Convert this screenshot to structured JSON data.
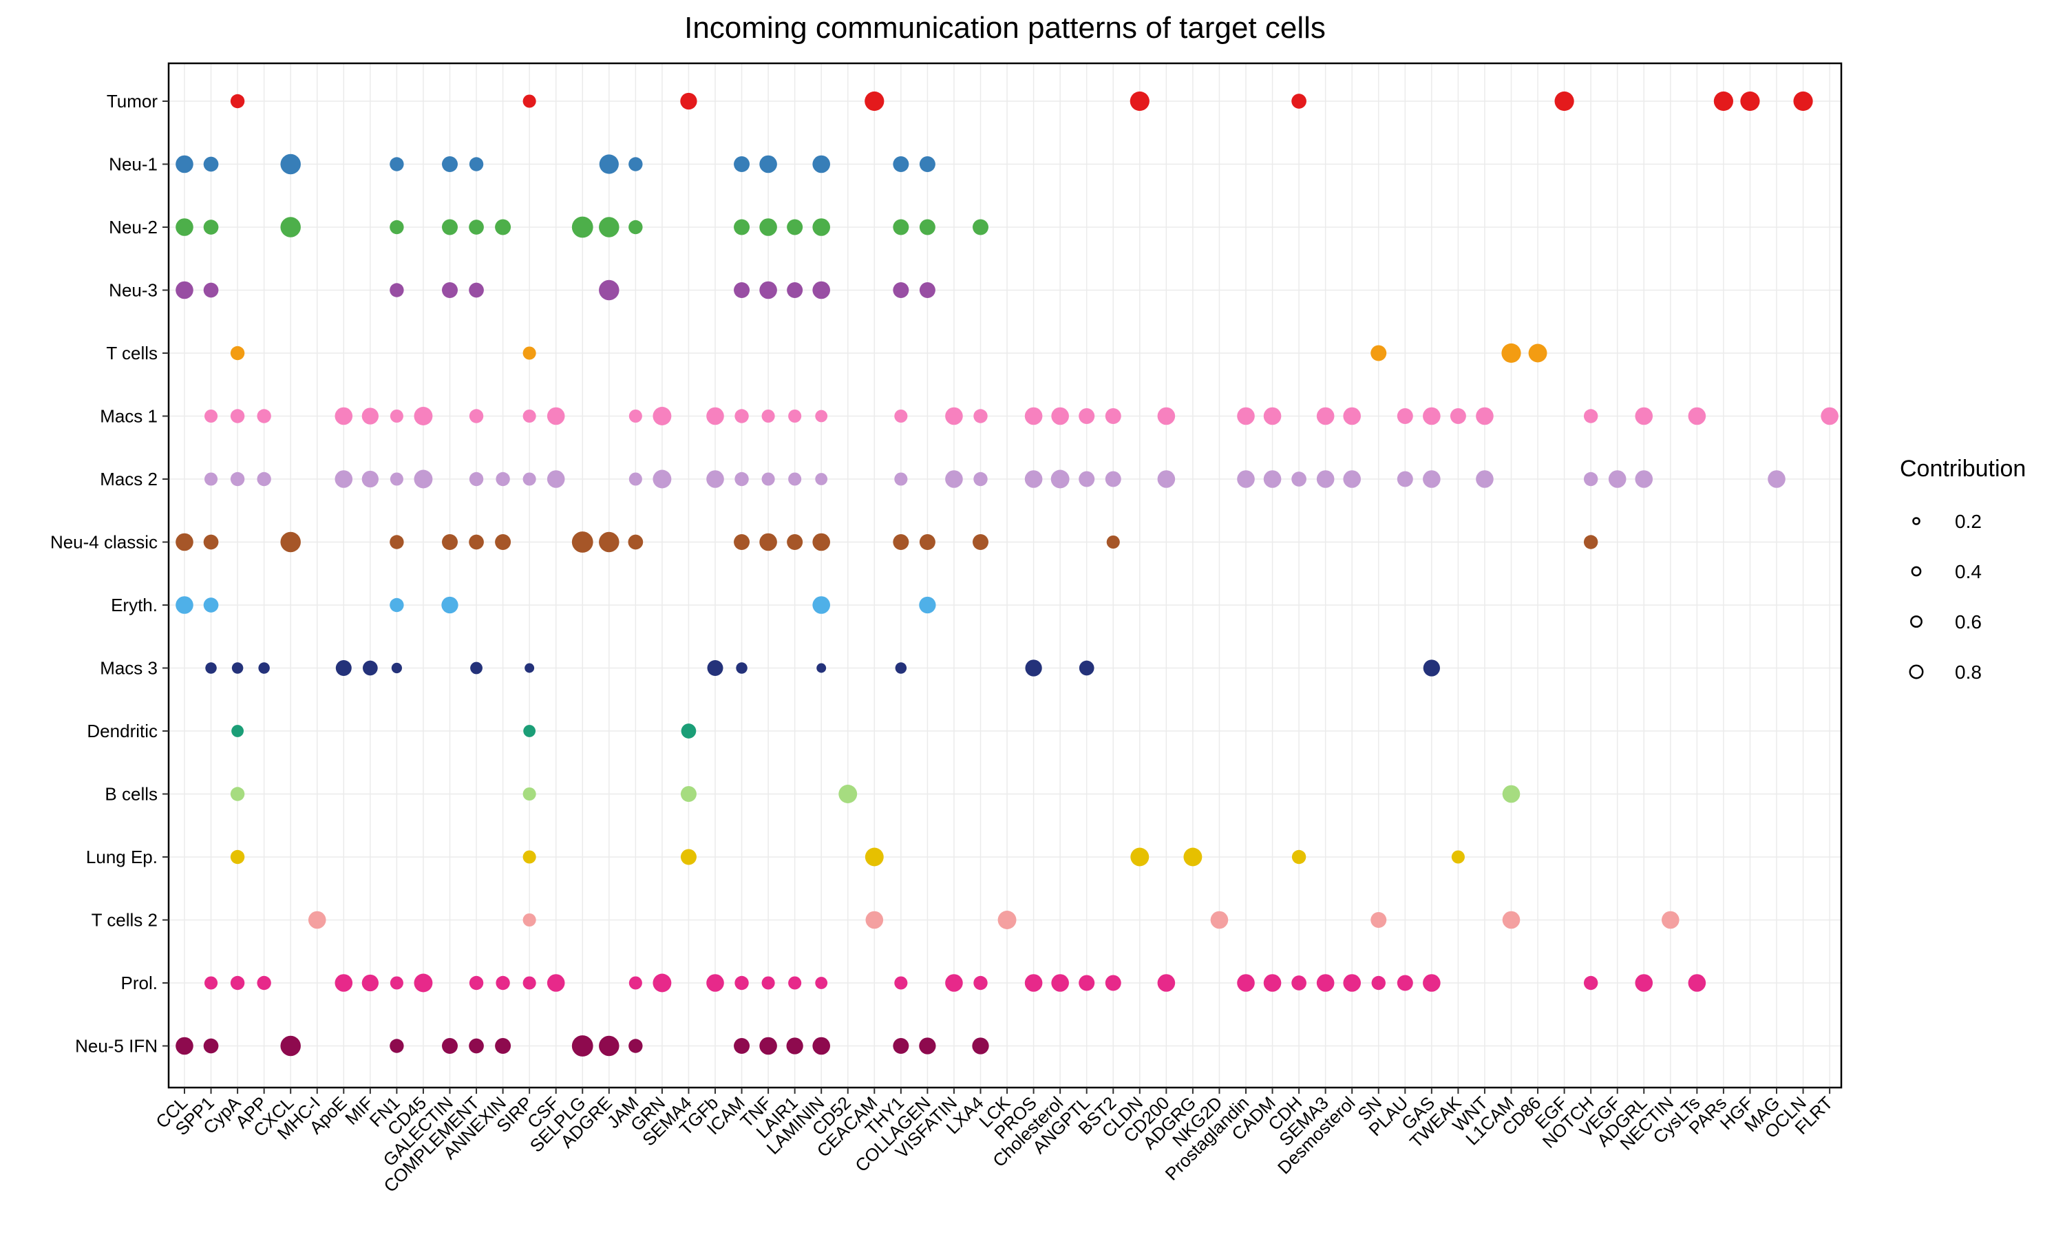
{
  "chart_data": {
    "type": "scatter",
    "title": "Incoming communication patterns of target cells",
    "x_categories": [
      "CCL",
      "SPP1",
      "CypA",
      "APP",
      "CXCL",
      "MHC-I",
      "ApoE",
      "MIF",
      "FN1",
      "CD45",
      "GALECTIN",
      "COMPLEMENT",
      "ANNEXIN",
      "SIRP",
      "CSF",
      "SELPLG",
      "ADGRE",
      "JAM",
      "GRN",
      "SEMA4",
      "TGFb",
      "ICAM",
      "TNF",
      "LAIR1",
      "LAMININ",
      "CD52",
      "CEACAM",
      "THY1",
      "COLLAGEN",
      "VISFATIN",
      "LXA4",
      "LCK",
      "PROS",
      "Cholesterol",
      "ANGPTL",
      "BST2",
      "CLDN",
      "CD200",
      "ADGRG",
      "NKG2D",
      "Prostaglandin",
      "CADM",
      "CDH",
      "SEMA3",
      "Desmosterol",
      "SN",
      "PLAU",
      "GAS",
      "TWEAK",
      "WNT",
      "L1CAM",
      "CD86",
      "EGF",
      "NOTCH",
      "VEGF",
      "ADGRL",
      "NECTIN",
      "CysLTs",
      "PARs",
      "HGF",
      "MAG",
      "OCLN",
      "FLRT"
    ],
    "y_categories": [
      "Tumor",
      "Neu-1",
      "Neu-2",
      "Neu-3",
      "T cells",
      "Macs 1",
      "Macs 2",
      "Neu-4 classic",
      "Eryth.",
      "Macs 3",
      "Dendritic",
      "B cells",
      "Lung Ep.",
      "T cells 2",
      "Prol.",
      "Neu-5 IFN"
    ],
    "colors": {
      "Tumor": "#e41a1c",
      "Neu-1": "#377eb8",
      "Neu-2": "#4daf4a",
      "Neu-3": "#984ea3",
      "T cells": "#f39c12",
      "Macs 1": "#f781bf",
      "Macs 2": "#c39bd3",
      "Neu-4 classic": "#a65628",
      "Eryth.": "#4fb0e8",
      "Macs 3": "#24327a",
      "Dendritic": "#1b9e77",
      "B cells": "#a6dc80",
      "Lung Ep.": "#e6c000",
      "T cells 2": "#f4a0a0",
      "Prol.": "#e7298a",
      "Neu-5 IFN": "#8e0a4e"
    },
    "points": {
      "Tumor": [
        [
          "CypA",
          0.4
        ],
        [
          "SIRP",
          0.35
        ],
        [
          "SEMA4",
          0.55
        ],
        [
          "CEACAM",
          0.7
        ],
        [
          "CLDN",
          0.7
        ],
        [
          "CDH",
          0.45
        ],
        [
          "EGF",
          0.7
        ],
        [
          "PARs",
          0.7
        ],
        [
          "HGF",
          0.7
        ],
        [
          "OCLN",
          0.7
        ]
      ],
      "Neu-1": [
        [
          "CCL",
          0.6
        ],
        [
          "SPP1",
          0.45
        ],
        [
          "CXCL",
          0.75
        ],
        [
          "FN1",
          0.4
        ],
        [
          "GALECTIN",
          0.5
        ],
        [
          "COMPLEMENT",
          0.4
        ],
        [
          "ADGRE",
          0.7
        ],
        [
          "JAM",
          0.4
        ],
        [
          "ICAM",
          0.5
        ],
        [
          "TNF",
          0.6
        ],
        [
          "LAMININ",
          0.6
        ],
        [
          "THY1",
          0.5
        ],
        [
          "COLLAGEN",
          0.5
        ]
      ],
      "Neu-2": [
        [
          "CCL",
          0.6
        ],
        [
          "SPP1",
          0.45
        ],
        [
          "CXCL",
          0.75
        ],
        [
          "FN1",
          0.4
        ],
        [
          "GALECTIN",
          0.5
        ],
        [
          "COMPLEMENT",
          0.45
        ],
        [
          "ANNEXIN",
          0.5
        ],
        [
          "SELPLG",
          0.8
        ],
        [
          "ADGRE",
          0.75
        ],
        [
          "JAM",
          0.4
        ],
        [
          "ICAM",
          0.5
        ],
        [
          "TNF",
          0.6
        ],
        [
          "LAIR1",
          0.5
        ],
        [
          "LAMININ",
          0.6
        ],
        [
          "THY1",
          0.5
        ],
        [
          "COLLAGEN",
          0.5
        ],
        [
          "LXA4",
          0.5
        ]
      ],
      "Neu-3": [
        [
          "CCL",
          0.6
        ],
        [
          "SPP1",
          0.45
        ],
        [
          "FN1",
          0.4
        ],
        [
          "GALECTIN",
          0.5
        ],
        [
          "COMPLEMENT",
          0.45
        ],
        [
          "ADGRE",
          0.75
        ],
        [
          "ICAM",
          0.5
        ],
        [
          "TNF",
          0.6
        ],
        [
          "LAIR1",
          0.5
        ],
        [
          "LAMININ",
          0.6
        ],
        [
          "THY1",
          0.5
        ],
        [
          "COLLAGEN",
          0.5
        ]
      ],
      "T cells": [
        [
          "CypA",
          0.4
        ],
        [
          "SIRP",
          0.35
        ],
        [
          "SN",
          0.5
        ],
        [
          "L1CAM",
          0.7
        ],
        [
          "CD86",
          0.65
        ]
      ],
      "Macs 1": [
        [
          "SPP1",
          0.35
        ],
        [
          "CypA",
          0.4
        ],
        [
          "APP",
          0.4
        ],
        [
          "ApoE",
          0.6
        ],
        [
          "MIF",
          0.55
        ],
        [
          "FN1",
          0.35
        ],
        [
          "CD45",
          0.65
        ],
        [
          "COMPLEMENT",
          0.4
        ],
        [
          "SIRP",
          0.35
        ],
        [
          "CSF",
          0.6
        ],
        [
          "JAM",
          0.35
        ],
        [
          "GRN",
          0.65
        ],
        [
          "TGFb",
          0.6
        ],
        [
          "ICAM",
          0.4
        ],
        [
          "TNF",
          0.35
        ],
        [
          "LAIR1",
          0.35
        ],
        [
          "LAMININ",
          0.3
        ],
        [
          "THY1",
          0.35
        ],
        [
          "VISFATIN",
          0.6
        ],
        [
          "LXA4",
          0.4
        ],
        [
          "PROS",
          0.6
        ],
        [
          "Cholesterol",
          0.6
        ],
        [
          "ANGPTL",
          0.5
        ],
        [
          "BST2",
          0.5
        ],
        [
          "CD200",
          0.6
        ],
        [
          "Prostaglandin",
          0.6
        ],
        [
          "CADM",
          0.6
        ],
        [
          "SEMA3",
          0.6
        ],
        [
          "Desmosterol",
          0.6
        ],
        [
          "PLAU",
          0.5
        ],
        [
          "GAS",
          0.6
        ],
        [
          "TWEAK",
          0.5
        ],
        [
          "WNT",
          0.6
        ],
        [
          "NOTCH",
          0.4
        ],
        [
          "ADGRL",
          0.6
        ],
        [
          "CysLTs",
          0.6
        ],
        [
          "FLRT",
          0.6
        ]
      ],
      "Macs 2": [
        [
          "SPP1",
          0.35
        ],
        [
          "CypA",
          0.4
        ],
        [
          "APP",
          0.4
        ],
        [
          "ApoE",
          0.6
        ],
        [
          "MIF",
          0.55
        ],
        [
          "FN1",
          0.35
        ],
        [
          "CD45",
          0.65
        ],
        [
          "COMPLEMENT",
          0.4
        ],
        [
          "ANNEXIN",
          0.4
        ],
        [
          "SIRP",
          0.35
        ],
        [
          "CSF",
          0.6
        ],
        [
          "JAM",
          0.35
        ],
        [
          "GRN",
          0.65
        ],
        [
          "TGFb",
          0.6
        ],
        [
          "ICAM",
          0.4
        ],
        [
          "TNF",
          0.35
        ],
        [
          "LAIR1",
          0.35
        ],
        [
          "LAMININ",
          0.3
        ],
        [
          "THY1",
          0.35
        ],
        [
          "VISFATIN",
          0.6
        ],
        [
          "LXA4",
          0.4
        ],
        [
          "PROS",
          0.6
        ],
        [
          "Cholesterol",
          0.65
        ],
        [
          "ANGPTL",
          0.5
        ],
        [
          "BST2",
          0.5
        ],
        [
          "CD200",
          0.6
        ],
        [
          "Prostaglandin",
          0.6
        ],
        [
          "CADM",
          0.6
        ],
        [
          "CDH",
          0.45
        ],
        [
          "SEMA3",
          0.6
        ],
        [
          "Desmosterol",
          0.6
        ],
        [
          "PLAU",
          0.5
        ],
        [
          "GAS",
          0.6
        ],
        [
          "WNT",
          0.6
        ],
        [
          "NOTCH",
          0.4
        ],
        [
          "VEGF",
          0.6
        ],
        [
          "ADGRL",
          0.6
        ],
        [
          "MAG",
          0.6
        ]
      ],
      "Neu-4 classic": [
        [
          "CCL",
          0.6
        ],
        [
          "SPP1",
          0.45
        ],
        [
          "CXCL",
          0.75
        ],
        [
          "FN1",
          0.4
        ],
        [
          "GALECTIN",
          0.5
        ],
        [
          "COMPLEMENT",
          0.45
        ],
        [
          "ANNEXIN",
          0.5
        ],
        [
          "SELPLG",
          0.8
        ],
        [
          "ADGRE",
          0.75
        ],
        [
          "JAM",
          0.45
        ],
        [
          "ICAM",
          0.5
        ],
        [
          "TNF",
          0.6
        ],
        [
          "LAIR1",
          0.5
        ],
        [
          "LAMININ",
          0.6
        ],
        [
          "THY1",
          0.5
        ],
        [
          "COLLAGEN",
          0.5
        ],
        [
          "LXA4",
          0.5
        ],
        [
          "BST2",
          0.35
        ],
        [
          "NOTCH",
          0.4
        ]
      ],
      "Eryth.": [
        [
          "CCL",
          0.6
        ],
        [
          "SPP1",
          0.45
        ],
        [
          "FN1",
          0.4
        ],
        [
          "GALECTIN",
          0.55
        ],
        [
          "LAMININ",
          0.6
        ],
        [
          "COLLAGEN",
          0.55
        ]
      ],
      "Macs 3": [
        [
          "SPP1",
          0.25
        ],
        [
          "CypA",
          0.25
        ],
        [
          "APP",
          0.25
        ],
        [
          "ApoE",
          0.5
        ],
        [
          "MIF",
          0.45
        ],
        [
          "FN1",
          0.2
        ],
        [
          "COMPLEMENT",
          0.3
        ],
        [
          "SIRP",
          0.15
        ],
        [
          "TGFb",
          0.5
        ],
        [
          "ICAM",
          0.25
        ],
        [
          "LAMININ",
          0.15
        ],
        [
          "THY1",
          0.25
        ],
        [
          "PROS",
          0.55
        ],
        [
          "ANGPTL",
          0.45
        ],
        [
          "GAS",
          0.55
        ]
      ],
      "Dendritic": [
        [
          "CypA",
          0.3
        ],
        [
          "SIRP",
          0.3
        ],
        [
          "SEMA4",
          0.45
        ]
      ],
      "B cells": [
        [
          "CypA",
          0.4
        ],
        [
          "SIRP",
          0.35
        ],
        [
          "SEMA4",
          0.5
        ],
        [
          "CD52",
          0.65
        ],
        [
          "L1CAM",
          0.6
        ]
      ],
      "Lung Ep.": [
        [
          "CypA",
          0.4
        ],
        [
          "SIRP",
          0.35
        ],
        [
          "SEMA4",
          0.5
        ],
        [
          "CEACAM",
          0.65
        ],
        [
          "CLDN",
          0.65
        ],
        [
          "ADGRG",
          0.65
        ],
        [
          "CDH",
          0.4
        ],
        [
          "TWEAK",
          0.35
        ]
      ],
      "T cells 2": [
        [
          "MHC-I",
          0.6
        ],
        [
          "SIRP",
          0.35
        ],
        [
          "CEACAM",
          0.6
        ],
        [
          "LCK",
          0.65
        ],
        [
          "NKG2D",
          0.6
        ],
        [
          "SN",
          0.5
        ],
        [
          "L1CAM",
          0.6
        ],
        [
          "NECTIN",
          0.6
        ]
      ],
      "Prol.": [
        [
          "SPP1",
          0.35
        ],
        [
          "CypA",
          0.4
        ],
        [
          "APP",
          0.4
        ],
        [
          "ApoE",
          0.6
        ],
        [
          "MIF",
          0.55
        ],
        [
          "FN1",
          0.35
        ],
        [
          "CD45",
          0.65
        ],
        [
          "COMPLEMENT",
          0.4
        ],
        [
          "ANNEXIN",
          0.4
        ],
        [
          "SIRP",
          0.35
        ],
        [
          "CSF",
          0.6
        ],
        [
          "JAM",
          0.35
        ],
        [
          "GRN",
          0.65
        ],
        [
          "TGFb",
          0.6
        ],
        [
          "ICAM",
          0.4
        ],
        [
          "TNF",
          0.35
        ],
        [
          "LAIR1",
          0.35
        ],
        [
          "LAMININ",
          0.3
        ],
        [
          "THY1",
          0.35
        ],
        [
          "VISFATIN",
          0.6
        ],
        [
          "LXA4",
          0.4
        ],
        [
          "PROS",
          0.6
        ],
        [
          "Cholesterol",
          0.6
        ],
        [
          "ANGPTL",
          0.5
        ],
        [
          "BST2",
          0.5
        ],
        [
          "CD200",
          0.6
        ],
        [
          "Prostaglandin",
          0.6
        ],
        [
          "CADM",
          0.6
        ],
        [
          "CDH",
          0.45
        ],
        [
          "SEMA3",
          0.6
        ],
        [
          "Desmosterol",
          0.6
        ],
        [
          "SN",
          0.4
        ],
        [
          "PLAU",
          0.5
        ],
        [
          "GAS",
          0.6
        ],
        [
          "NOTCH",
          0.4
        ],
        [
          "ADGRL",
          0.6
        ],
        [
          "CysLTs",
          0.6
        ]
      ],
      "Neu-5 IFN": [
        [
          "CCL",
          0.6
        ],
        [
          "SPP1",
          0.45
        ],
        [
          "CXCL",
          0.75
        ],
        [
          "FN1",
          0.4
        ],
        [
          "GALECTIN",
          0.5
        ],
        [
          "COMPLEMENT",
          0.45
        ],
        [
          "ANNEXIN",
          0.5
        ],
        [
          "SELPLG",
          0.8
        ],
        [
          "ADGRE",
          0.75
        ],
        [
          "JAM",
          0.4
        ],
        [
          "ICAM",
          0.5
        ],
        [
          "TNF",
          0.6
        ],
        [
          "LAIR1",
          0.55
        ],
        [
          "LAMININ",
          0.6
        ],
        [
          "THY1",
          0.5
        ],
        [
          "COLLAGEN",
          0.55
        ],
        [
          "LXA4",
          0.55
        ]
      ]
    },
    "legend": {
      "title": "Contribution",
      "values": [
        0.2,
        0.4,
        0.6,
        0.8
      ],
      "labels": [
        "0.2",
        "0.4",
        "0.6",
        "0.8"
      ],
      "placement": "right"
    },
    "grid": true
  }
}
